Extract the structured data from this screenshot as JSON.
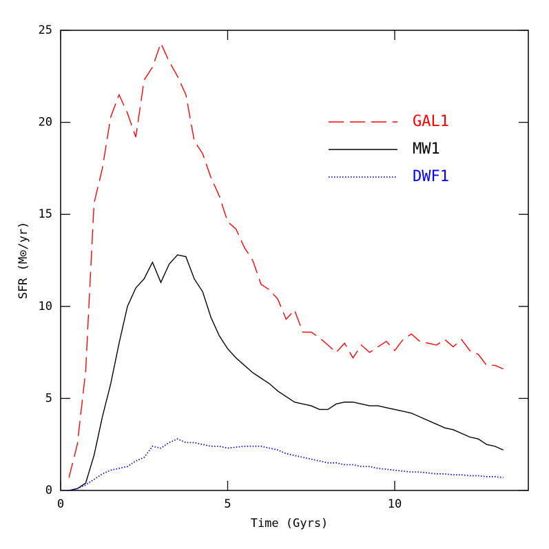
{
  "chart_data": {
    "type": "line",
    "xlabel": "Time (Gyrs)",
    "ylabel": "SFR (M⊙/yr)",
    "x": [
      0.25,
      0.5,
      0.75,
      1.0,
      1.25,
      1.5,
      1.75,
      2.0,
      2.25,
      2.5,
      2.75,
      3.0,
      3.25,
      3.5,
      3.75,
      4.0,
      4.25,
      4.5,
      4.75,
      5.0,
      5.25,
      5.5,
      5.75,
      6.0,
      6.25,
      6.5,
      6.75,
      7.0,
      7.25,
      7.5,
      7.75,
      8.0,
      8.25,
      8.5,
      8.75,
      9.0,
      9.25,
      9.5,
      9.75,
      10.0,
      10.25,
      10.5,
      10.75,
      11.0,
      11.25,
      11.5,
      11.75,
      12.0,
      12.25,
      12.5,
      12.75,
      13.0,
      13.25
    ],
    "series": [
      {
        "name": "GAL1",
        "color": "#ff0000",
        "line_style": "dashed",
        "values": [
          0.7,
          2.5,
          6.5,
          15.6,
          17.5,
          20.3,
          21.5,
          20.5,
          19.2,
          22.3,
          23.0,
          24.3,
          23.3,
          22.5,
          21.5,
          19.0,
          18.3,
          17.0,
          16.0,
          14.6,
          14.2,
          13.2,
          12.5,
          11.2,
          10.9,
          10.4,
          9.3,
          9.8,
          8.6,
          8.6,
          8.3,
          7.9,
          7.5,
          8.0,
          7.2,
          7.9,
          7.5,
          7.8,
          8.1,
          7.6,
          8.2,
          8.5,
          8.1,
          8.0,
          7.9,
          8.2,
          7.8,
          8.2,
          7.6,
          7.4,
          6.8,
          6.8,
          6.6
        ]
      },
      {
        "name": "MW1",
        "color": "#000000",
        "line_style": "solid",
        "values": [
          0,
          0.1,
          0.4,
          1.9,
          4.0,
          5.8,
          8.0,
          10.0,
          11.0,
          11.5,
          12.4,
          11.3,
          12.3,
          12.8,
          12.7,
          11.5,
          10.8,
          9.4,
          8.4,
          7.7,
          7.2,
          6.8,
          6.4,
          6.1,
          5.8,
          5.4,
          5.1,
          4.8,
          4.7,
          4.6,
          4.4,
          4.4,
          4.7,
          4.8,
          4.8,
          4.7,
          4.6,
          4.6,
          4.5,
          4.4,
          4.3,
          4.2,
          4.0,
          3.8,
          3.6,
          3.4,
          3.3,
          3.1,
          2.9,
          2.8,
          2.5,
          2.4,
          2.2
        ]
      },
      {
        "name": "DWF1",
        "color": "#0000ff",
        "line_style": "dotted",
        "values": [
          0,
          0.1,
          0.3,
          0.6,
          0.9,
          1.1,
          1.2,
          1.3,
          1.6,
          1.8,
          2.4,
          2.3,
          2.6,
          2.8,
          2.6,
          2.6,
          2.5,
          2.4,
          2.4,
          2.3,
          2.35,
          2.4,
          2.4,
          2.4,
          2.3,
          2.2,
          2.0,
          1.9,
          1.8,
          1.7,
          1.6,
          1.5,
          1.5,
          1.4,
          1.4,
          1.3,
          1.3,
          1.2,
          1.15,
          1.1,
          1.05,
          1.0,
          1.0,
          0.95,
          0.9,
          0.9,
          0.85,
          0.85,
          0.8,
          0.8,
          0.75,
          0.75,
          0.7
        ]
      }
    ],
    "xlim": [
      0,
      14
    ],
    "xticks": [
      0,
      5,
      10
    ],
    "ylim": [
      0,
      25
    ],
    "yticks": [
      0,
      5,
      10,
      15,
      20,
      25
    ],
    "grid": false,
    "legend": "upper right"
  }
}
